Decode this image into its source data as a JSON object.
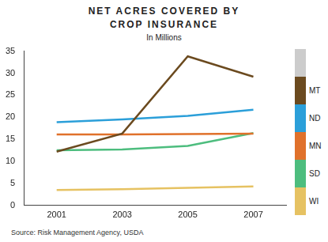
{
  "chart_data": {
    "type": "line",
    "title": "NET ACRES COVERED BY CROP INSURANCE",
    "subtitle": "In Millions",
    "source": "Source: Risk Management Agency, USDA",
    "categories": [
      "2001",
      "2003",
      "2005",
      "2007"
    ],
    "series": [
      {
        "name": "MT",
        "color": "#6b4a1f",
        "values": [
          12.2,
          16.3,
          33.8,
          29.2
        ]
      },
      {
        "name": "ND",
        "color": "#2b9fd9",
        "values": [
          18.9,
          19.5,
          20.3,
          21.7
        ]
      },
      {
        "name": "MN",
        "color": "#e0712b",
        "values": [
          16.1,
          16.1,
          16.2,
          16.3
        ]
      },
      {
        "name": "SD",
        "color": "#4dbd7e",
        "values": [
          12.5,
          12.7,
          13.5,
          16.4
        ]
      },
      {
        "name": "WI",
        "color": "#e6c262",
        "values": [
          3.5,
          3.7,
          4.0,
          4.3
        ]
      }
    ],
    "ylim": [
      0,
      35
    ],
    "yticks": [
      0,
      5,
      10,
      15,
      20,
      25,
      30,
      35
    ],
    "grid": false,
    "legend": "right"
  }
}
